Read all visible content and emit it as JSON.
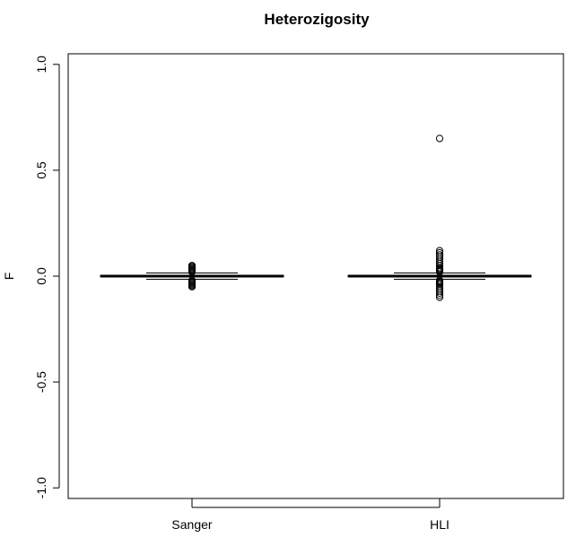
{
  "chart_data": {
    "type": "box",
    "title": "Heterozigosity",
    "xlabel": "",
    "ylabel": "F",
    "ylim": [
      -1.05,
      1.05
    ],
    "yticks": [
      {
        "value": 1.0,
        "label": "1.0"
      },
      {
        "value": 0.5,
        "label": "0.5"
      },
      {
        "value": 0.0,
        "label": "0.0"
      },
      {
        "value": -0.5,
        "label": "-0.5"
      },
      {
        "value": -1.0,
        "label": "-1.0"
      }
    ],
    "categories": [
      "Sanger",
      "HLI"
    ],
    "grid": false,
    "boxes": [
      {
        "name": "Sanger",
        "whisker_low": -0.015,
        "q1": -0.003,
        "median": 0.0,
        "q3": 0.003,
        "whisker_high": 0.015,
        "outliers": [
          0.05,
          0.045,
          0.04,
          0.035,
          0.03,
          0.025,
          0.02,
          -0.02,
          -0.025,
          -0.03,
          -0.035,
          -0.04,
          -0.045,
          -0.05
        ]
      },
      {
        "name": "HLI",
        "whisker_low": -0.015,
        "q1": -0.003,
        "median": 0.0,
        "q3": 0.003,
        "whisker_high": 0.015,
        "outliers": [
          0.65,
          0.12,
          0.11,
          0.1,
          0.09,
          0.08,
          0.07,
          0.06,
          0.05,
          0.04,
          0.035,
          0.03,
          0.025,
          0.02,
          -0.02,
          -0.025,
          -0.03,
          -0.035,
          -0.04,
          -0.05,
          -0.06,
          -0.07,
          -0.08,
          -0.09,
          -0.1
        ]
      }
    ]
  }
}
